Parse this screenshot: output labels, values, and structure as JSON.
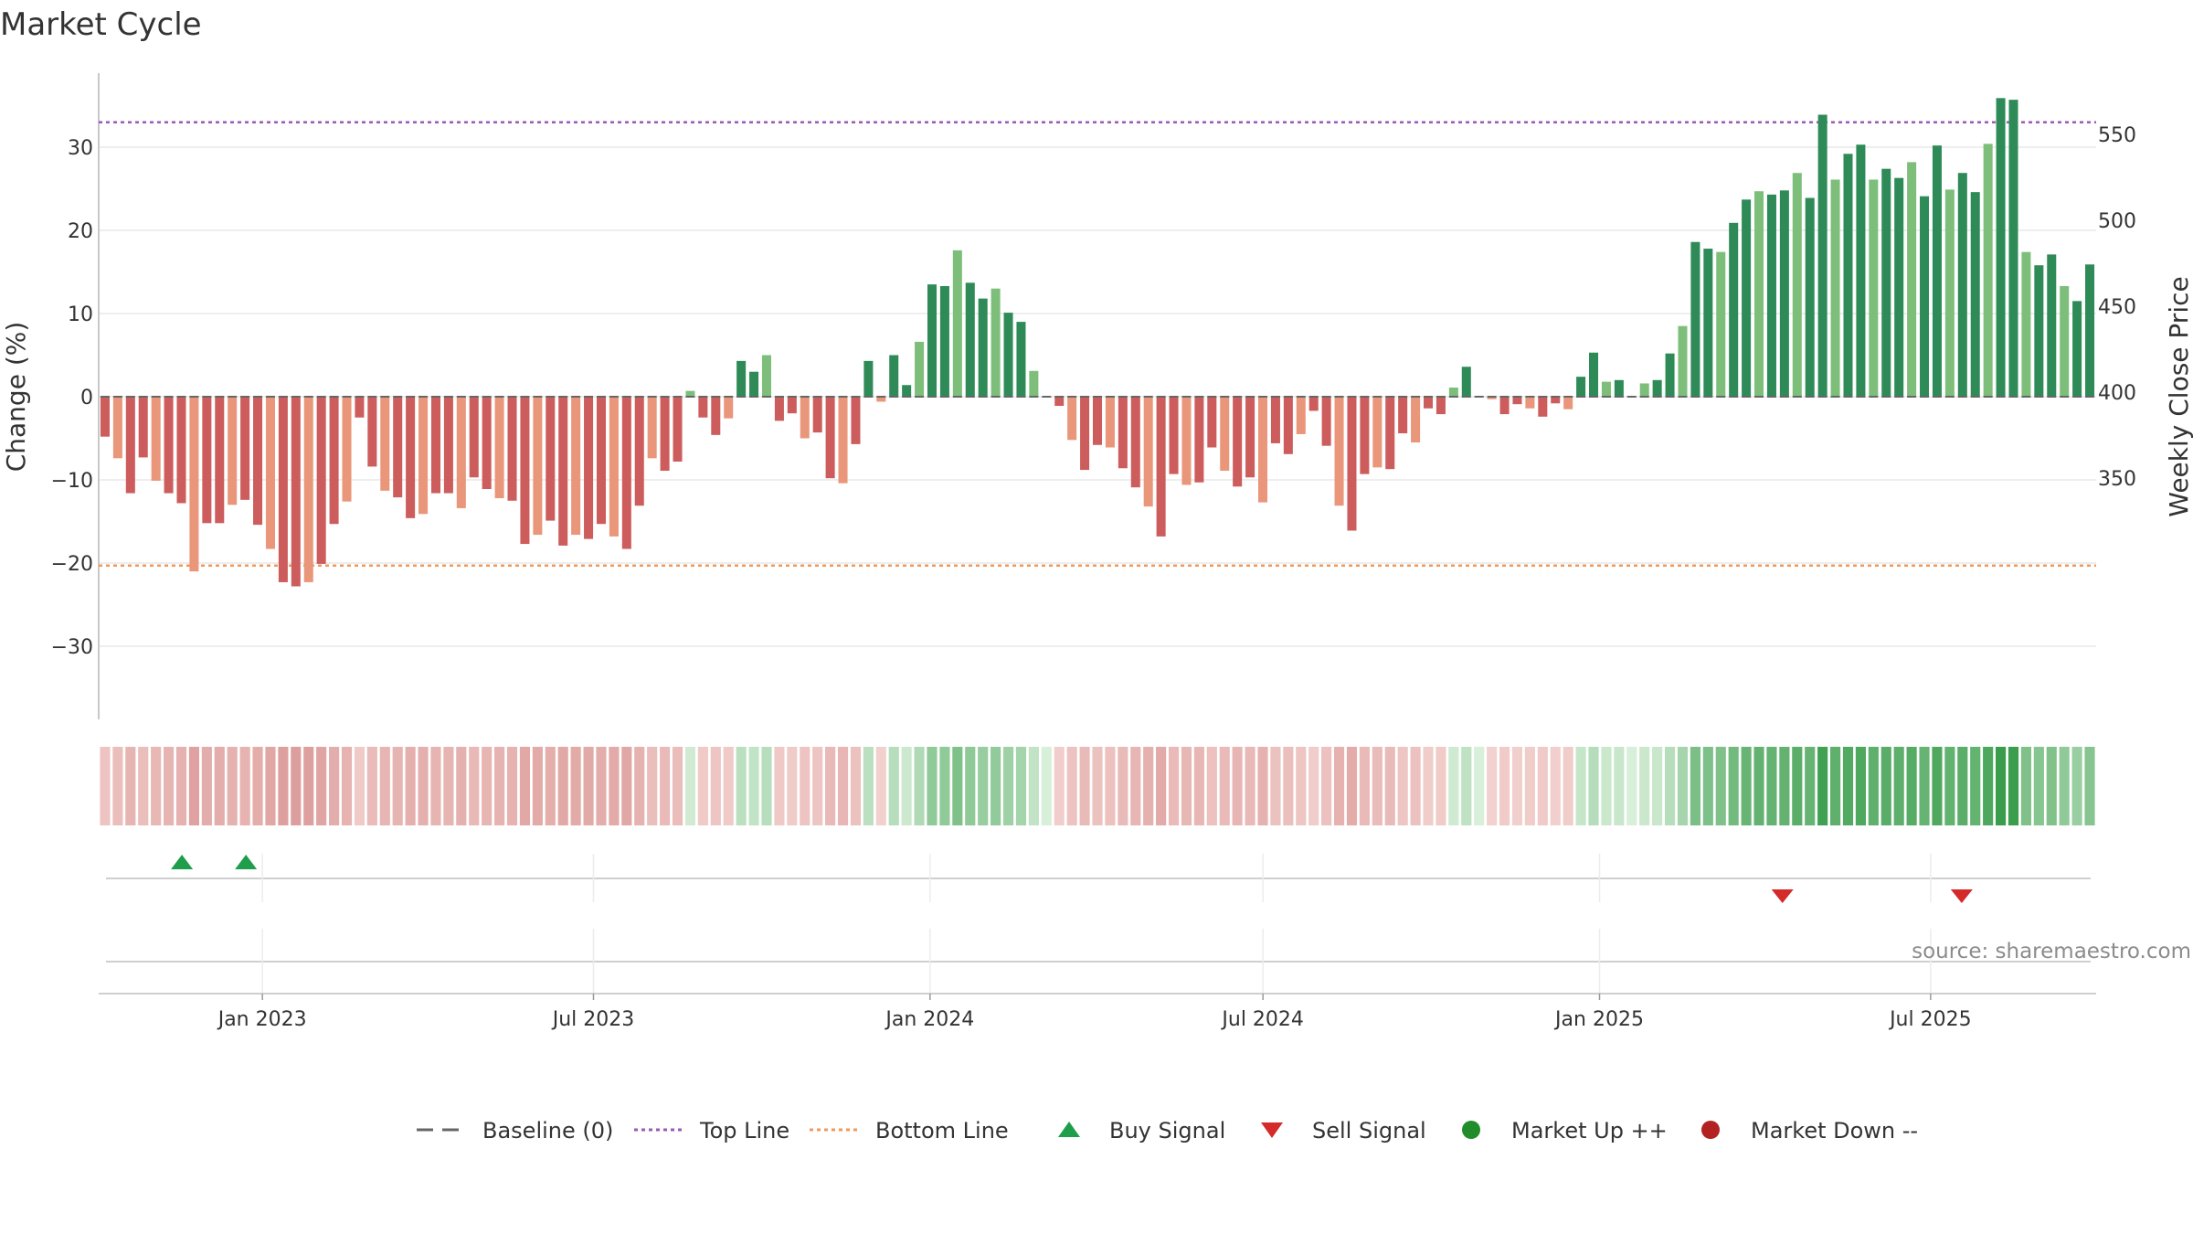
{
  "chart_data": {
    "type": "bar",
    "title": "Market Cycle",
    "ylabel": "Change (%)",
    "y2label": "Weekly Close Price",
    "ylim": [
      -39,
      39
    ],
    "y2lim": [
      310,
      570
    ],
    "yticks": [
      30,
      20,
      10,
      0,
      -10,
      -20,
      -30
    ],
    "ytick_labels": [
      "30",
      "20",
      "10",
      "0",
      "−10",
      "−20",
      "−30"
    ],
    "y2ticks": [
      550,
      500,
      450,
      400,
      350
    ],
    "y2tick_labels": [
      "550",
      "500",
      "450",
      "400",
      "350"
    ],
    "top_line": 33,
    "bottom_line": -20.3,
    "x_start": "2022-10-07",
    "x_end": "2025-09-26",
    "x_step_days": 7,
    "xticks": [
      "2023-01-01",
      "2023-07-01",
      "2024-01-01",
      "2024-07-01",
      "2025-01-01",
      "2025-07-01"
    ],
    "xtick_labels": [
      "Jan 2023",
      "Jul 2023",
      "Jan 2024",
      "Jul 2024",
      "Jan 2025",
      "Jul 2025"
    ],
    "values": [
      -4.8,
      -7.4,
      -11.6,
      -7.3,
      -10.1,
      -11.6,
      -12.8,
      -21.0,
      -15.2,
      -15.2,
      -13.0,
      -12.4,
      -15.4,
      -18.3,
      -22.3,
      -22.8,
      -22.3,
      -20.1,
      -15.3,
      -12.6,
      -2.5,
      -8.4,
      -11.3,
      -12.1,
      -14.6,
      -14.1,
      -11.6,
      -11.6,
      -13.4,
      -9.7,
      -11.1,
      -12.2,
      -12.5,
      -17.7,
      -16.6,
      -14.9,
      -17.9,
      -16.6,
      -17.1,
      -15.3,
      -16.8,
      -18.3,
      -13.1,
      -7.4,
      -8.9,
      -7.8,
      0.7,
      -2.5,
      -4.6,
      -2.6,
      4.3,
      3.0,
      5.0,
      -2.9,
      -2.0,
      -5.0,
      -4.3,
      -9.8,
      -10.4,
      -5.7,
      4.3,
      -0.6,
      5.0,
      1.4,
      6.6,
      13.5,
      13.3,
      17.6,
      13.7,
      11.8,
      13.0,
      10.1,
      9.0,
      3.1,
      0,
      -1.1,
      -5.2,
      -8.8,
      -5.8,
      -6.1,
      -8.6,
      -10.9,
      -13.2,
      -16.8,
      -9.3,
      -10.6,
      -10.3,
      -6.1,
      -8.9,
      -10.8,
      -9.7,
      -12.7,
      -5.6,
      -6.9,
      -4.5,
      -1.7,
      -5.9,
      -13.1,
      -16.1,
      -9.3,
      -8.5,
      -8.7,
      -4.4,
      -5.5,
      -1.4,
      -2.1,
      1.1,
      3.6,
      0,
      -0.3,
      -2.1,
      -0.9,
      -1.4,
      -2.4,
      -0.8,
      -1.5,
      2.4,
      5.3,
      1.8,
      2.0,
      0,
      1.6,
      2.0,
      5.2,
      8.5,
      18.6,
      17.8,
      17.4,
      20.9,
      23.7,
      24.7,
      24.3,
      24.8,
      26.9,
      23.9,
      33.9,
      26.1,
      29.2,
      30.3,
      26.1,
      27.4,
      26.3,
      28.2,
      24.1,
      30.2,
      24.9,
      26.9,
      24.6,
      30.4,
      35.9,
      35.7,
      17.4,
      15.8,
      17.1,
      13.3,
      11.5,
      15.9
    ],
    "buy_signals": [
      "2022-11-18",
      "2022-12-23"
    ],
    "sell_signals": [
      "2025-04-11",
      "2025-07-18"
    ],
    "source": "source: sharemaestro.com",
    "legend_position": "bottom-center",
    "legend": [
      {
        "label": "Baseline (0)",
        "kind": "dash"
      },
      {
        "label": "Top Line",
        "kind": "dot-purple"
      },
      {
        "label": "Bottom Line",
        "kind": "dot-orange"
      },
      {
        "label": "Buy Signal",
        "kind": "tri-up"
      },
      {
        "label": "Sell Signal",
        "kind": "tri-down"
      },
      {
        "label": "Market Up ++",
        "kind": "circle-green"
      },
      {
        "label": "Market Down --",
        "kind": "circle-red"
      }
    ],
    "colors": {
      "strong_up": "#2e8b57",
      "mild_up": "#7dbf7a",
      "strong_down": "#cd5c5c",
      "mild_down": "#e9967a",
      "top_line": "#9b59b6",
      "bottom_line": "#f0995a",
      "buy": "#1e9e4a",
      "sell": "#d42a2a",
      "market_up": "#218c2a",
      "market_down": "#b22222",
      "baseline": "#666666"
    }
  }
}
